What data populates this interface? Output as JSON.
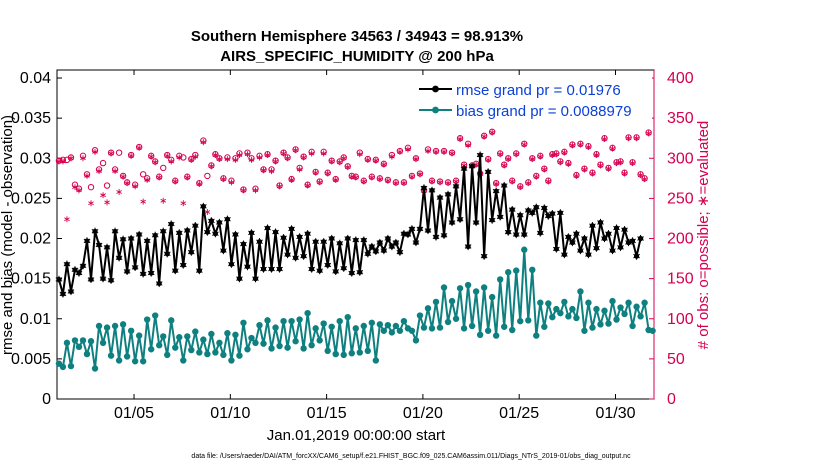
{
  "chart_data": {
    "type": "line",
    "title": "Southern Hemisphere 34563 / 34943 = 98.913%",
    "subtitle": "AIRS_SPECIFIC_HUMIDITY @ 200 hPa",
    "xlabel": "Jan.01,2019 00:00:00 start",
    "ylabel": "rmse and bias (model - observation)",
    "ylabel_right": "# of obs: o=possible; ∗=evaluated",
    "footnote": "data file: /Users/raeder/DAI/ATM_forcXX/CAM6_setup/f.e21.FHIST_BGC.f09_025.CAM6assim.011/Diags_NTrS_2019-01/obs_diag_output.nc",
    "xlim": [
      1.0,
      32.0
    ],
    "ylim": [
      0,
      0.041
    ],
    "ylim_right": [
      0,
      410
    ],
    "x_ticks": [
      5,
      10,
      15,
      20,
      25,
      30
    ],
    "x_tick_labels": [
      "01/05",
      "01/10",
      "01/15",
      "01/20",
      "01/25",
      "01/30"
    ],
    "y_ticks": [
      0,
      0.005,
      0.01,
      0.015,
      0.02,
      0.025,
      0.03,
      0.035,
      0.04
    ],
    "y_tick_labels": [
      "0",
      "0.005",
      "0.01",
      "0.015",
      "0.02",
      "0.025",
      "0.03",
      "0.035",
      "0.04"
    ],
    "y_ticks_right": [
      0,
      50,
      100,
      150,
      200,
      250,
      300,
      350,
      400
    ],
    "y_tick_labels_right": [
      "0",
      "50",
      "100",
      "150",
      "200",
      "250",
      "300",
      "350",
      "400"
    ],
    "legend_position": "top-right",
    "colors": {
      "rmse": "#000000",
      "bias": "#0f8080",
      "obs": "#d6004f"
    },
    "series": [
      {
        "name": "rmse",
        "legend": "rmse grand pr = 0.01976",
        "values": [
          0.0149,
          0.0131,
          0.0168,
          0.0134,
          0.0161,
          0.0157,
          0.0166,
          0.0197,
          0.0149,
          0.0209,
          0.0192,
          0.015,
          0.0189,
          0.0148,
          0.0209,
          0.0176,
          0.0199,
          0.0159,
          0.02,
          0.0164,
          0.0205,
          0.0156,
          0.0197,
          0.0157,
          0.0204,
          0.0144,
          0.0209,
          0.0181,
          0.0218,
          0.016,
          0.0207,
          0.0167,
          0.021,
          0.0183,
          0.0216,
          0.016,
          0.024,
          0.0208,
          0.0222,
          0.0206,
          0.022,
          0.0185,
          0.0224,
          0.0168,
          0.0205,
          0.015,
          0.0193,
          0.0165,
          0.0207,
          0.015,
          0.0196,
          0.0162,
          0.0213,
          0.0162,
          0.0208,
          0.0162,
          0.0201,
          0.018,
          0.0212,
          0.0176,
          0.0202,
          0.0178,
          0.0206,
          0.0162,
          0.0196,
          0.016,
          0.0196,
          0.0167,
          0.02,
          0.0159,
          0.0194,
          0.0163,
          0.02,
          0.0157,
          0.0198,
          0.0158,
          0.0198,
          0.0181,
          0.019,
          0.0184,
          0.0195,
          0.0185,
          0.02,
          0.019,
          0.0195,
          0.0183,
          0.0206,
          0.0205,
          0.0212,
          0.0195,
          0.0212,
          0.0263,
          0.021,
          0.026,
          0.0202,
          0.0251,
          0.0204,
          0.0255,
          0.022,
          0.0265,
          0.0224,
          0.0287,
          0.019,
          0.029,
          0.022,
          0.0304,
          0.0178,
          0.0283,
          0.0223,
          0.0259,
          0.0227,
          0.0266,
          0.0208,
          0.0236,
          0.0205,
          0.0229,
          0.0205,
          0.0235,
          0.0232,
          0.0239,
          0.0207,
          0.0238,
          0.0228,
          0.0231,
          0.0187,
          0.0232,
          0.018,
          0.0202,
          0.0195,
          0.0206,
          0.0185,
          0.02,
          0.018,
          0.0216,
          0.0188,
          0.022,
          0.02,
          0.0206,
          0.0185,
          0.0213,
          0.0189,
          0.0211,
          0.0195,
          0.0197,
          0.0178,
          0.02
        ]
      },
      {
        "name": "bias",
        "legend": "bias grand pr = 0.0088979",
        "values": [
          0.0044,
          0.004,
          0.007,
          0.0041,
          0.0073,
          0.0065,
          0.0073,
          0.0056,
          0.0072,
          0.0038,
          0.0091,
          0.007,
          0.0089,
          0.0054,
          0.0091,
          0.0048,
          0.0093,
          0.0053,
          0.0085,
          0.0047,
          0.0079,
          0.0047,
          0.0099,
          0.0062,
          0.0104,
          0.0067,
          0.0078,
          0.0055,
          0.0098,
          0.0064,
          0.0077,
          0.0048,
          0.0078,
          0.0061,
          0.0084,
          0.0058,
          0.0074,
          0.0056,
          0.0081,
          0.0058,
          0.007,
          0.0055,
          0.0082,
          0.0048,
          0.008,
          0.0054,
          0.0095,
          0.0062,
          0.0076,
          0.007,
          0.0092,
          0.0069,
          0.0098,
          0.0063,
          0.0089,
          0.0066,
          0.0097,
          0.0064,
          0.0097,
          0.0072,
          0.0099,
          0.0063,
          0.0107,
          0.0067,
          0.0088,
          0.0073,
          0.0094,
          0.006,
          0.009,
          0.0056,
          0.0097,
          0.0055,
          0.0102,
          0.0057,
          0.0088,
          0.0058,
          0.0091,
          0.006,
          0.0095,
          0.0048,
          0.0093,
          0.0085,
          0.0092,
          0.0083,
          0.0091,
          0.0085,
          0.0097,
          0.0088,
          0.0085,
          0.0073,
          0.0104,
          0.0089,
          0.0113,
          0.0088,
          0.0121,
          0.0089,
          0.0139,
          0.0096,
          0.0122,
          0.01,
          0.0138,
          0.0088,
          0.0142,
          0.0091,
          0.0134,
          0.008,
          0.0139,
          0.0085,
          0.0127,
          0.0079,
          0.0149,
          0.009,
          0.0158,
          0.0086,
          0.016,
          0.0097,
          0.0186,
          0.0098,
          0.0161,
          0.0079,
          0.012,
          0.009,
          0.0119,
          0.0102,
          0.0112,
          0.0107,
          0.0121,
          0.0103,
          0.0112,
          0.0101,
          0.0134,
          0.0085,
          0.012,
          0.0089,
          0.0112,
          0.0093,
          0.011,
          0.0094,
          0.0122,
          0.0099,
          0.0114,
          0.0106,
          0.012,
          0.0091,
          0.0115,
          0.0103,
          0.012,
          0.0086,
          0.0085
        ]
      }
    ],
    "obs_possible": [
      297,
      298,
      298,
      301,
      267,
      262,
      303,
      280,
      264,
      310,
      286,
      294,
      266,
      307,
      286,
      307,
      278,
      270,
      304,
      267,
      314,
      280,
      275,
      303,
      296,
      277,
      288,
      304,
      298,
      272,
      303,
      301,
      277,
      299,
      304,
      269,
      322,
      278,
      291,
      305,
      300,
      275,
      301,
      272,
      300,
      306,
      261,
      307,
      300,
      262,
      303,
      286,
      305,
      286,
      297,
      266,
      307,
      301,
      274,
      311,
      288,
      302,
      267,
      308,
      283,
      271,
      308,
      282,
      297,
      274,
      296,
      301,
      290,
      278,
      277,
      307,
      272,
      299,
      277,
      298,
      275,
      293,
      273,
      304,
      270,
      309,
      270,
      313,
      278,
      300,
      281,
      260,
      311,
      272,
      309,
      271,
      309,
      270,
      307,
      272,
      325,
      292,
      318,
      291,
      293,
      281,
      328,
      299,
      333,
      269,
      306,
      292,
      300,
      272,
      306,
      265,
      318,
      270,
      300,
      278,
      303,
      287,
      272,
      305,
      306,
      296,
      308,
      294,
      317,
      279,
      318,
      287,
      315,
      282,
      305,
      292,
      325,
      288,
      313,
      295,
      296,
      282,
      326,
      295,
      326,
      280,
      275,
      332
    ],
    "obs_evaluated": [
      296,
      296,
      224,
      300,
      264,
      260,
      300,
      278,
      244,
      308,
      284,
      254,
      245,
      306,
      284,
      258,
      277,
      269,
      303,
      265,
      313,
      246,
      273,
      302,
      295,
      276,
      247,
      303,
      296,
      271,
      301,
      244,
      276,
      298,
      302,
      268,
      320,
      233,
      290,
      304,
      299,
      274,
      299,
      270,
      298,
      304,
      260,
      305,
      298,
      260,
      301,
      285,
      304,
      284,
      296,
      265,
      306,
      300,
      273,
      310,
      286,
      301,
      266,
      306,
      282,
      270,
      306,
      281,
      296,
      273,
      295,
      300,
      289,
      277,
      276,
      305,
      271,
      298,
      276,
      297,
      274,
      292,
      272,
      302,
      269,
      308,
      269,
      311,
      277,
      299,
      280,
      259,
      309,
      271,
      308,
      270,
      308,
      269,
      306,
      271,
      324,
      291,
      316,
      290,
      292,
      280,
      327,
      298,
      332,
      268,
      305,
      291,
      299,
      271,
      305,
      264,
      317,
      269,
      299,
      277,
      302,
      286,
      271,
      304,
      305,
      295,
      307,
      293,
      316,
      278,
      317,
      286,
      314,
      281,
      304,
      291,
      324,
      287,
      312,
      294,
      295,
      281,
      325,
      294,
      325,
      279,
      274,
      331
    ]
  }
}
